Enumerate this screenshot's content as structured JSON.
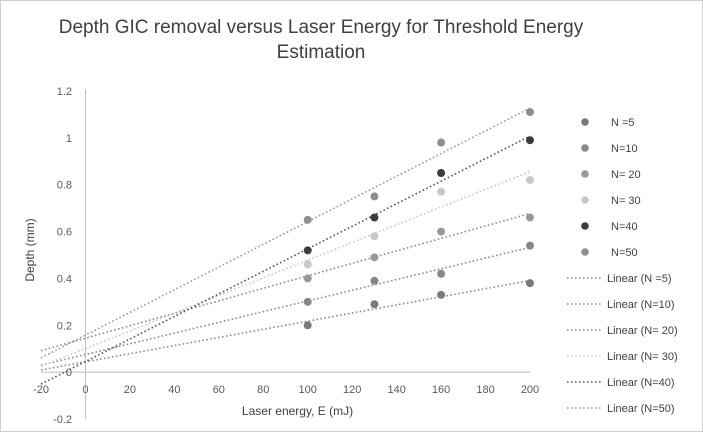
{
  "chart_data": {
    "type": "scatter",
    "title_line1": "Depth GIC removal versus Laser Energy for Threshold Energy",
    "title_line2": "Estimation",
    "xlabel": "Laser energy, E (mJ)",
    "ylabel": "Depth  (mm)",
    "xlim": [
      -20,
      200
    ],
    "ylim": [
      -0.2,
      1.2
    ],
    "x_ticks": [
      "-20",
      "0",
      "20",
      "40",
      "60",
      "80",
      "100",
      "120",
      "140",
      "160",
      "180",
      "200"
    ],
    "y_ticks": [
      "-0.2",
      "0",
      "0.2",
      "0.4",
      "0.6",
      "0.8",
      "1",
      "1.2"
    ],
    "x": [
      100,
      130,
      160,
      200
    ],
    "series": [
      {
        "name": "N =5",
        "values": [
          0.2,
          0.29,
          0.33,
          0.38
        ],
        "color": "#7a7a7a",
        "line_color": "#8c8c8c"
      },
      {
        "name": "N=10",
        "values": [
          0.3,
          0.39,
          0.42,
          0.54
        ],
        "color": "#888888",
        "line_color": "#8c8c8c"
      },
      {
        "name": "N= 20",
        "values": [
          0.4,
          0.49,
          0.6,
          0.66
        ],
        "color": "#999999",
        "line_color": "#8c8c8c"
      },
      {
        "name": "N= 30",
        "values": [
          0.46,
          0.58,
          0.77,
          0.82
        ],
        "color": "#c8c8c8",
        "line_color": "#c8c8c8"
      },
      {
        "name": "N=40",
        "values": [
          0.52,
          0.66,
          0.85,
          0.99
        ],
        "color": "#3c3c3c",
        "line_color": "#555555"
      },
      {
        "name": "N=50",
        "values": [
          0.65,
          0.75,
          0.98,
          1.11
        ],
        "color": "#8e8e8e",
        "line_color": "#9a9a9a"
      }
    ],
    "trendline_labels": [
      "Linear (N =5)",
      "Linear (N=10)",
      "Linear (N= 20)",
      "Linear (N= 30)",
      "Linear (N=40)",
      "Linear (N=50)"
    ],
    "legend_position": "right",
    "grid": false
  }
}
